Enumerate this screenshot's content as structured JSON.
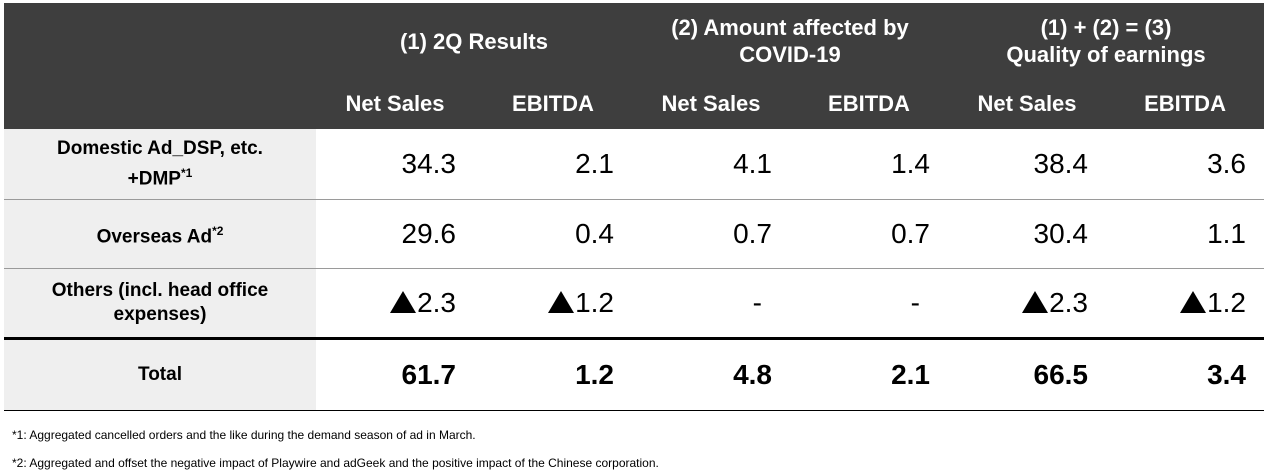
{
  "header": {
    "group1": "(1) 2Q Results",
    "group2_line1": "(2) Amount affected by",
    "group2_line2": "COVID-19",
    "group3_line1": "(1) + (2) = (3)",
    "group3_line2": "Quality of earnings",
    "col_net_sales": "Net Sales",
    "col_ebitda": "EBITDA"
  },
  "rows": [
    {
      "label_line1": "Domestic Ad_DSP, etc.",
      "label_line2": "+DMP",
      "label_sup": "*1",
      "values": [
        "34.3",
        "2.1",
        "4.1",
        "1.4",
        "38.4",
        "3.6"
      ]
    },
    {
      "label_line1": "Overseas Ad",
      "label_sup": "*2",
      "values": [
        "29.6",
        "0.4",
        "0.7",
        "0.7",
        "30.4",
        "1.1"
      ]
    },
    {
      "label_line1": "Others (incl. head office",
      "label_line2": "expenses)",
      "values": [
        "2.3",
        "1.2",
        "-",
        "-",
        "2.3",
        "1.2"
      ]
    },
    {
      "label_line1": "Total",
      "values": [
        "61.7",
        "1.2",
        "4.8",
        "2.1",
        "66.5",
        "3.4"
      ]
    }
  ],
  "notes": [
    "*1: Aggregated cancelled orders and the like during the demand season of ad in March.",
    "*2: Aggregated and offset the negative impact of Playwire and adGeek and the positive impact of the Chinese corporation."
  ],
  "colors": {
    "header_bg": "#3e3e3e",
    "label_bg": "#efefef"
  },
  "icons": {
    "negative_marker": "black-up-triangle-icon"
  }
}
